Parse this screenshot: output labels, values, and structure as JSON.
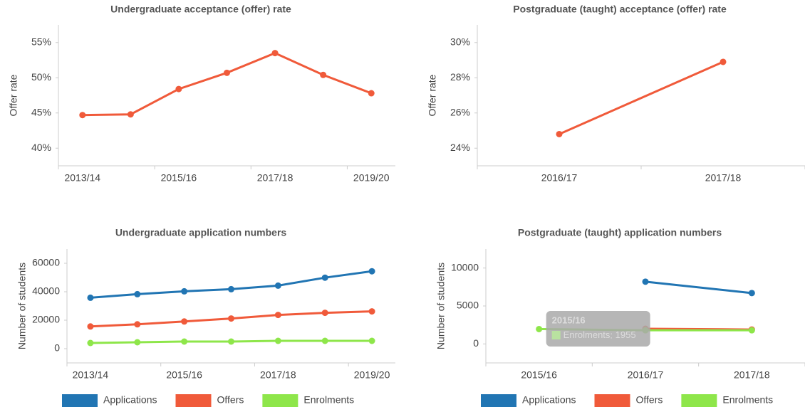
{
  "chart_data": [
    {
      "type": "line",
      "title": "Undergraduate acceptance (offer) rate",
      "y_label": "Offer rate",
      "categories": [
        "2013/14",
        null,
        "2015/16",
        null,
        "2017/18",
        null,
        "2019/20"
      ],
      "values": [
        44.7,
        44.8,
        48.4,
        50.7,
        53.5,
        50.4,
        47.8
      ],
      "color": "#f05a3a",
      "ylim": [
        37.5,
        57.5
      ],
      "yticks": [
        {
          "value": 40,
          "label": "40%"
        },
        {
          "value": 45,
          "label": "45%"
        },
        {
          "value": 50,
          "label": "50%"
        },
        {
          "value": 55,
          "label": "55%"
        }
      ]
    },
    {
      "type": "line",
      "title": "Postgraduate (taught) acceptance (offer) rate",
      "y_label": "Offer rate",
      "categories": [
        "2016/17",
        "2017/18"
      ],
      "values": [
        24.8,
        28.9
      ],
      "color": "#f05a3a",
      "ylim": [
        23,
        31
      ],
      "yticks": [
        {
          "value": 24,
          "label": "24%"
        },
        {
          "value": 26,
          "label": "26%"
        },
        {
          "value": 28,
          "label": "28%"
        },
        {
          "value": 30,
          "label": "30%"
        }
      ]
    },
    {
      "type": "line",
      "title": "Undergraduate application numbers",
      "y_label": "Number of students",
      "categories": [
        "2013/14",
        null,
        "2015/16",
        null,
        "2017/18",
        null,
        "2019/20"
      ],
      "series": [
        {
          "name": "Applications",
          "color": "#2175b3",
          "values": [
            35800,
            38300,
            40300,
            41800,
            44300,
            49900,
            54400
          ]
        },
        {
          "name": "Offers",
          "color": "#f05a3a",
          "values": [
            15600,
            17100,
            19100,
            21200,
            23700,
            25200,
            26200
          ]
        },
        {
          "name": "Enrolments",
          "color": "#8ee64a",
          "values": [
            4000,
            4500,
            5000,
            5000,
            5500,
            5500,
            5500
          ]
        }
      ],
      "ylim": [
        -10000,
        70000
      ],
      "yticks": [
        0,
        20000,
        40000,
        60000
      ],
      "legend": "bottom"
    },
    {
      "type": "line",
      "title": "Postgraduate (taught) application numbers",
      "y_label": "Number of students",
      "categories": [
        "2015/16",
        "2016/17",
        "2017/18"
      ],
      "series": [
        {
          "name": "Applications",
          "color": "#2175b3",
          "values": [
            null,
            8200,
            6700
          ]
        },
        {
          "name": "Offers",
          "color": "#f05a3a",
          "values": [
            null,
            2000,
            1900
          ]
        },
        {
          "name": "Enrolments",
          "color": "#8ee64a",
          "values": [
            1955,
            1800,
            1800
          ]
        }
      ],
      "ylim": [
        -2500,
        12500
      ],
      "yticks": [
        0,
        5000,
        10000
      ],
      "legend": "bottom"
    }
  ]
}
